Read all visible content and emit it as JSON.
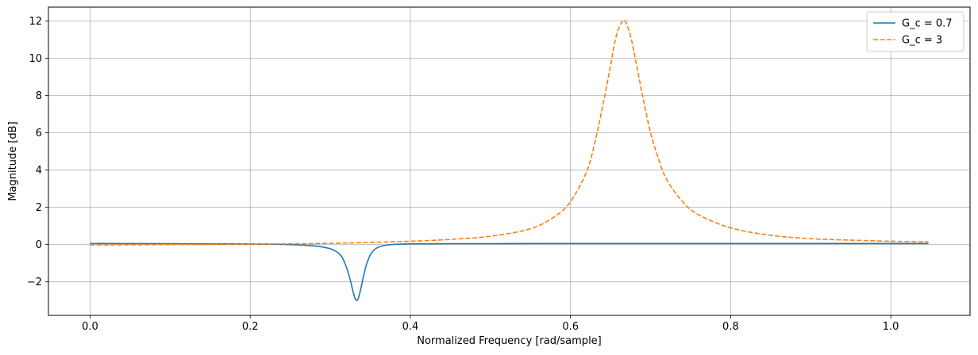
{
  "chart_data": {
    "type": "line",
    "title": "",
    "xlabel": "Normalized Frequency [rad/sample]",
    "ylabel": "Magnitude [dB]",
    "xlim": [
      -0.052,
      1.099
    ],
    "ylim": [
      -3.8,
      12.75
    ],
    "x_ticks": [
      0.0,
      0.2,
      0.4,
      0.6,
      0.8,
      1.0
    ],
    "x_tick_labels": [
      "0.0",
      "0.2",
      "0.4",
      "0.6",
      "0.8",
      "1.0"
    ],
    "y_ticks": [
      -2,
      0,
      2,
      4,
      6,
      8,
      10,
      12
    ],
    "y_tick_labels": [
      "−2",
      "0",
      "2",
      "4",
      "6",
      "8",
      "10",
      "12"
    ],
    "grid": true,
    "legend_position": "top-right",
    "series": [
      {
        "name": "G_c = 0.7",
        "color": "#1f77b4",
        "style": "solid",
        "x": [
          0.0,
          0.1,
          0.2,
          0.25,
          0.28,
          0.3,
          0.31,
          0.315,
          0.32,
          0.325,
          0.328,
          0.331,
          0.333,
          0.335,
          0.338,
          0.341,
          0.345,
          0.35,
          0.355,
          0.36,
          0.37,
          0.38,
          0.4,
          0.45,
          0.5,
          0.6,
          0.7,
          0.8,
          0.9,
          1.0,
          1.047
        ],
        "y": [
          0.06,
          0.05,
          0.03,
          0.0,
          -0.07,
          -0.22,
          -0.45,
          -0.7,
          -1.2,
          -1.9,
          -2.45,
          -2.9,
          -3.0,
          -2.88,
          -2.4,
          -1.8,
          -1.1,
          -0.55,
          -0.28,
          -0.14,
          -0.03,
          0.01,
          0.04,
          0.05,
          0.05,
          0.06,
          0.06,
          0.06,
          0.06,
          0.06,
          0.06
        ]
      },
      {
        "name": "G_c = 3",
        "color": "#ff7f0e",
        "style": "dashed",
        "x": [
          0.0,
          0.1,
          0.2,
          0.3,
          0.35,
          0.4,
          0.45,
          0.5,
          0.55,
          0.58,
          0.6,
          0.62,
          0.63,
          0.64,
          0.65,
          0.655,
          0.66,
          0.665,
          0.667,
          0.67,
          0.675,
          0.68,
          0.69,
          0.7,
          0.71,
          0.72,
          0.74,
          0.76,
          0.8,
          0.85,
          0.9,
          0.95,
          1.0,
          1.047
        ],
        "y": [
          -0.02,
          0.0,
          0.02,
          0.07,
          0.12,
          0.18,
          0.28,
          0.45,
          0.85,
          1.5,
          2.3,
          3.9,
          5.4,
          7.4,
          9.6,
          10.8,
          11.6,
          12.0,
          12.05,
          11.85,
          11.2,
          10.2,
          8.0,
          6.0,
          4.6,
          3.5,
          2.3,
          1.6,
          0.9,
          0.5,
          0.32,
          0.24,
          0.18,
          0.15
        ]
      }
    ]
  }
}
